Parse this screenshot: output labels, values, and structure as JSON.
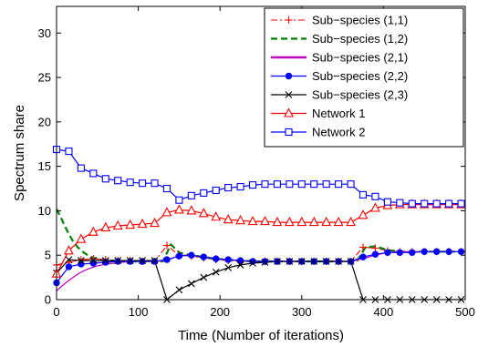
{
  "chart_data": {
    "type": "line",
    "title": "",
    "xlabel": "Time (Number of iterations)",
    "ylabel": "Spectrum share",
    "xlim": [
      0,
      500
    ],
    "ylim": [
      0,
      33
    ],
    "xticks": [
      0,
      100,
      200,
      300,
      400,
      500
    ],
    "yticks": [
      0,
      5,
      10,
      15,
      20,
      25,
      30
    ],
    "grid": false,
    "legend_position": "top-right",
    "series": [
      {
        "name": "Sub−species (1,1)",
        "color": "#ff0000",
        "dash": "dashdot",
        "marker": "plus",
        "points": [
          [
            0,
            3.9
          ],
          [
            15,
            4.2
          ],
          [
            30,
            4.5
          ],
          [
            45,
            4.6
          ],
          [
            60,
            4.5
          ],
          [
            75,
            4.4
          ],
          [
            90,
            4.4
          ],
          [
            105,
            4.3
          ],
          [
            120,
            4.3
          ],
          [
            135,
            6.1
          ],
          [
            150,
            5.0
          ],
          [
            165,
            4.9
          ],
          [
            180,
            4.7
          ],
          [
            195,
            4.5
          ],
          [
            210,
            4.4
          ],
          [
            225,
            4.3
          ],
          [
            240,
            4.3
          ],
          [
            255,
            4.3
          ],
          [
            270,
            4.3
          ],
          [
            285,
            4.3
          ],
          [
            300,
            4.3
          ],
          [
            315,
            4.3
          ],
          [
            330,
            4.3
          ],
          [
            345,
            4.3
          ],
          [
            360,
            4.3
          ],
          [
            375,
            5.9
          ],
          [
            390,
            5.8
          ],
          [
            405,
            5.5
          ],
          [
            420,
            5.4
          ],
          [
            435,
            5.4
          ],
          [
            450,
            5.4
          ],
          [
            465,
            5.4
          ],
          [
            480,
            5.4
          ],
          [
            495,
            5.4
          ]
        ]
      },
      {
        "name": "Sub−species (1,2)",
        "color": "#008000",
        "dash": "dash",
        "marker": "none",
        "points": [
          [
            0,
            10.2
          ],
          [
            5,
            9.3
          ],
          [
            10,
            8.3
          ],
          [
            15,
            7.4
          ],
          [
            20,
            6.6
          ],
          [
            25,
            6.0
          ],
          [
            30,
            5.5
          ],
          [
            35,
            5.2
          ],
          [
            40,
            4.9
          ],
          [
            45,
            4.7
          ],
          [
            50,
            4.6
          ],
          [
            60,
            4.4
          ],
          [
            70,
            4.4
          ],
          [
            80,
            4.3
          ],
          [
            90,
            4.3
          ],
          [
            100,
            4.3
          ],
          [
            110,
            4.3
          ],
          [
            120,
            4.3
          ],
          [
            130,
            4.3
          ],
          [
            140,
            6.2
          ],
          [
            150,
            5.3
          ],
          [
            165,
            5.0
          ],
          [
            180,
            4.8
          ],
          [
            195,
            4.6
          ],
          [
            210,
            4.5
          ],
          [
            225,
            4.4
          ],
          [
            240,
            4.3
          ],
          [
            270,
            4.3
          ],
          [
            300,
            4.3
          ],
          [
            330,
            4.3
          ],
          [
            360,
            4.3
          ],
          [
            368,
            4.4
          ],
          [
            378,
            5.9
          ],
          [
            390,
            6.0
          ],
          [
            405,
            5.6
          ],
          [
            420,
            5.4
          ],
          [
            440,
            5.4
          ],
          [
            470,
            5.4
          ],
          [
            500,
            5.4
          ]
        ]
      },
      {
        "name": "Sub−species (2,1)",
        "color": "#c000c0",
        "dash": "solid",
        "marker": "none",
        "points": [
          [
            0,
            1.0
          ],
          [
            10,
            1.8
          ],
          [
            20,
            2.5
          ],
          [
            30,
            3.1
          ],
          [
            40,
            3.5
          ],
          [
            50,
            3.8
          ],
          [
            60,
            4.0
          ],
          [
            70,
            4.1
          ],
          [
            80,
            4.2
          ],
          [
            90,
            4.3
          ],
          [
            100,
            4.3
          ],
          [
            120,
            4.3
          ],
          [
            135,
            4.4
          ],
          [
            150,
            5.0
          ],
          [
            165,
            5.0
          ],
          [
            180,
            4.8
          ],
          [
            195,
            4.6
          ],
          [
            210,
            4.5
          ],
          [
            225,
            4.4
          ],
          [
            240,
            4.3
          ],
          [
            270,
            4.3
          ],
          [
            300,
            4.3
          ],
          [
            330,
            4.3
          ],
          [
            360,
            4.3
          ],
          [
            375,
            4.6
          ],
          [
            390,
            5.0
          ],
          [
            405,
            5.3
          ],
          [
            420,
            5.4
          ],
          [
            450,
            5.4
          ],
          [
            500,
            5.4
          ]
        ]
      },
      {
        "name": "Sub−species (2,2)",
        "color": "#0000ff",
        "dash": "solid",
        "marker": "dot",
        "points": [
          [
            0,
            1.9
          ],
          [
            15,
            3.7
          ],
          [
            30,
            4.0
          ],
          [
            45,
            4.1
          ],
          [
            60,
            4.2
          ],
          [
            75,
            4.3
          ],
          [
            90,
            4.3
          ],
          [
            105,
            4.3
          ],
          [
            120,
            4.3
          ],
          [
            135,
            4.5
          ],
          [
            150,
            4.9
          ],
          [
            165,
            5.0
          ],
          [
            180,
            4.8
          ],
          [
            195,
            4.6
          ],
          [
            210,
            4.5
          ],
          [
            225,
            4.4
          ],
          [
            240,
            4.3
          ],
          [
            255,
            4.3
          ],
          [
            270,
            4.3
          ],
          [
            285,
            4.3
          ],
          [
            300,
            4.3
          ],
          [
            315,
            4.3
          ],
          [
            330,
            4.3
          ],
          [
            345,
            4.3
          ],
          [
            360,
            4.3
          ],
          [
            375,
            4.8
          ],
          [
            390,
            5.1
          ],
          [
            405,
            5.3
          ],
          [
            420,
            5.3
          ],
          [
            435,
            5.3
          ],
          [
            450,
            5.4
          ],
          [
            465,
            5.4
          ],
          [
            480,
            5.4
          ],
          [
            495,
            5.4
          ]
        ]
      },
      {
        "name": "Sub−species (2,3)",
        "color": "#000000",
        "dash": "solid",
        "marker": "x",
        "points": [
          [
            0,
            3.0
          ],
          [
            15,
            4.5
          ],
          [
            30,
            4.4
          ],
          [
            45,
            4.4
          ],
          [
            60,
            4.4
          ],
          [
            75,
            4.4
          ],
          [
            90,
            4.4
          ],
          [
            105,
            4.4
          ],
          [
            120,
            4.4
          ],
          [
            135,
            0
          ],
          [
            150,
            1.1
          ],
          [
            165,
            1.8
          ],
          [
            180,
            2.5
          ],
          [
            195,
            3.1
          ],
          [
            210,
            3.6
          ],
          [
            225,
            3.9
          ],
          [
            240,
            4.1
          ],
          [
            255,
            4.2
          ],
          [
            270,
            4.3
          ],
          [
            285,
            4.3
          ],
          [
            300,
            4.3
          ],
          [
            315,
            4.3
          ],
          [
            330,
            4.3
          ],
          [
            345,
            4.3
          ],
          [
            360,
            4.3
          ],
          [
            375,
            0
          ],
          [
            390,
            0
          ],
          [
            405,
            0
          ],
          [
            420,
            0
          ],
          [
            435,
            0
          ],
          [
            450,
            0
          ],
          [
            465,
            0
          ],
          [
            480,
            0
          ],
          [
            495,
            0
          ]
        ]
      },
      {
        "name": "Network 1",
        "color": "#ff0000",
        "dash": "solid",
        "marker": "triangle",
        "points": [
          [
            0,
            2.9
          ],
          [
            15,
            5.5
          ],
          [
            30,
            6.8
          ],
          [
            45,
            7.6
          ],
          [
            60,
            8.1
          ],
          [
            75,
            8.3
          ],
          [
            90,
            8.4
          ],
          [
            105,
            8.5
          ],
          [
            120,
            8.6
          ],
          [
            135,
            9.8
          ],
          [
            150,
            10.1
          ],
          [
            165,
            10.0
          ],
          [
            180,
            9.7
          ],
          [
            195,
            9.3
          ],
          [
            210,
            9.0
          ],
          [
            225,
            8.9
          ],
          [
            240,
            8.8
          ],
          [
            255,
            8.8
          ],
          [
            270,
            8.7
          ],
          [
            285,
            8.7
          ],
          [
            300,
            8.7
          ],
          [
            315,
            8.7
          ],
          [
            330,
            8.7
          ],
          [
            345,
            8.7
          ],
          [
            360,
            8.7
          ],
          [
            375,
            9.5
          ],
          [
            390,
            10.3
          ],
          [
            405,
            10.6
          ],
          [
            420,
            10.7
          ],
          [
            435,
            10.7
          ],
          [
            450,
            10.7
          ],
          [
            465,
            10.7
          ],
          [
            480,
            10.7
          ],
          [
            495,
            10.7
          ]
        ]
      },
      {
        "name": "Network 2",
        "color": "#0000ff",
        "dash": "solid",
        "marker": "square",
        "points": [
          [
            0,
            16.9
          ],
          [
            15,
            16.7
          ],
          [
            30,
            14.8
          ],
          [
            45,
            14.2
          ],
          [
            60,
            13.6
          ],
          [
            75,
            13.4
          ],
          [
            90,
            13.2
          ],
          [
            105,
            13.1
          ],
          [
            120,
            13.1
          ],
          [
            135,
            12.5
          ],
          [
            150,
            11.2
          ],
          [
            165,
            11.7
          ],
          [
            180,
            12.0
          ],
          [
            195,
            12.3
          ],
          [
            210,
            12.6
          ],
          [
            225,
            12.7
          ],
          [
            240,
            12.9
          ],
          [
            255,
            13.0
          ],
          [
            270,
            13.0
          ],
          [
            285,
            13.0
          ],
          [
            300,
            13.0
          ],
          [
            315,
            13.0
          ],
          [
            330,
            13.0
          ],
          [
            345,
            13.0
          ],
          [
            360,
            13.0
          ],
          [
            375,
            11.8
          ],
          [
            390,
            11.6
          ],
          [
            405,
            11.0
          ],
          [
            420,
            10.9
          ],
          [
            435,
            10.8
          ],
          [
            450,
            10.8
          ],
          [
            465,
            10.8
          ],
          [
            480,
            10.8
          ],
          [
            495,
            10.8
          ]
        ]
      }
    ]
  }
}
